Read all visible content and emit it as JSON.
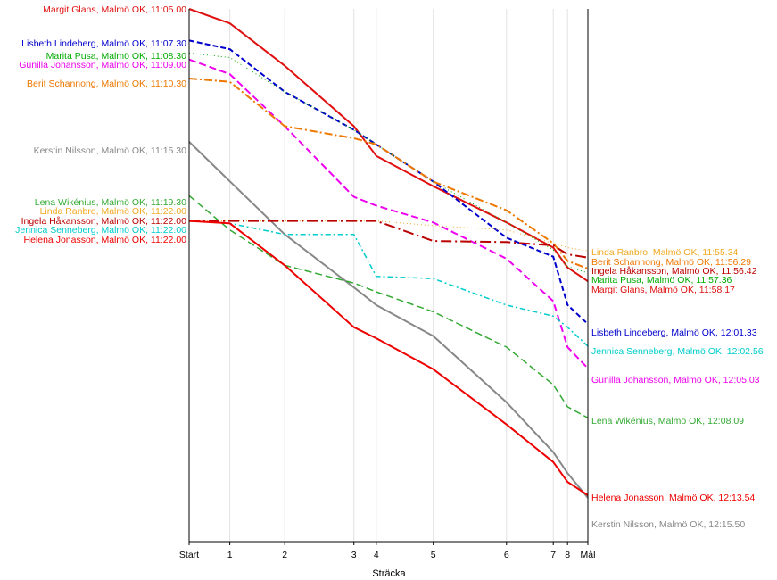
{
  "chart_data": {
    "type": "line",
    "xlabel": "Sträcka",
    "ylabel": "",
    "x_ticks": [
      "Start",
      "1",
      "2",
      "3",
      "4",
      "5",
      "6",
      "7",
      "8",
      "Mål"
    ],
    "x_positions": [
      0,
      1,
      2.35,
      4.05,
      4.6,
      6.0,
      7.8,
      8.95,
      9.3,
      9.8
    ],
    "ylim_seconds": [
      0,
      2410
    ],
    "grid": true,
    "series": [
      {
        "name": "Margit Glans, Malmö OK",
        "start_label": "Margit Glans, Malmö OK, 11:05.00",
        "end_label": "Margit Glans, Malmö OK, 11:58.17",
        "color": "#e01010",
        "dash": "",
        "width": 2,
        "y": [
          0,
          65,
          257,
          531,
          665,
          802,
          966,
          1080,
          1170,
          1232
        ]
      },
      {
        "name": "Lisbeth Lindeberg, Malmö OK",
        "start_label": "Lisbeth Lindeberg, Malmö OK, 11:07.30",
        "end_label": "Lisbeth Lindeberg, Malmö OK, 12:01.33",
        "color": "#0000cc",
        "dash": "6,3",
        "width": 2,
        "y": [
          143,
          182,
          375,
          547,
          613,
          781,
          1035,
          1121,
          1339,
          1426
        ]
      },
      {
        "name": "Marita Pusa, Malmö OK",
        "start_label": "Marita Pusa, Malmö OK, 11:08.30",
        "end_label": "Marita Pusa, Malmö OK, 11:57.36",
        "color": "#00aa00",
        "dash": "1,3",
        "width": 1,
        "y": [
          200,
          220,
          375,
          547,
          613,
          781,
          966,
          1090,
          1165,
          1195
        ]
      },
      {
        "name": "Gunilla Johansson, Malmö OK",
        "start_label": "Gunilla Johansson, Malmö OK, 11:09.00",
        "end_label": "Gunilla Johansson, Malmö OK, 12:05.03",
        "color": "#ee00ee",
        "dash": "8,4",
        "width": 2,
        "y": [
          229,
          295,
          531,
          850,
          890,
          966,
          1130,
          1322,
          1530,
          1626
        ]
      },
      {
        "name": "Berit Schannong, Malmö OK",
        "start_label": "Berit Schannong, Malmö OK, 11:10.30",
        "end_label": "Berit Schannong, Malmö OK, 11:56.29",
        "color": "#ee7700",
        "dash": "9,3,2,3",
        "width": 2,
        "y": [
          315,
          330,
          531,
          585,
          613,
          781,
          911,
          1060,
          1140,
          1175
        ]
      },
      {
        "name": "Kerstin Nilsson, Malmö OK",
        "start_label": "Kerstin Nilsson, Malmö OK, 11:15.30",
        "end_label": "Kerstin Nilsson, Malmö OK, 12:15.50",
        "color": "#888888",
        "dash": "",
        "width": 2,
        "y": [
          601,
          780,
          1020,
          1260,
          1340,
          1480,
          1780,
          2005,
          2100,
          2212
        ]
      },
      {
        "name": "Lena Wikénius, Malmö OK",
        "start_label": "Lena Wikénius, Malmö OK, 11:19.30",
        "end_label": "Lena Wikénius, Malmö OK, 12:08.09",
        "color": "#33aa33",
        "dash": "8,4",
        "width": 1.5,
        "y": [
          845,
          1000,
          1160,
          1240,
          1280,
          1370,
          1530,
          1700,
          1800,
          1850
        ]
      },
      {
        "name": "Linda Ranbro, Malmö OK",
        "start_label": "Linda Ranbro, Malmö OK, 11:22.00",
        "end_label": "Linda Ranbro, Malmö OK, 11:55.34",
        "color": "#eeaa22",
        "dash": "1,3",
        "width": 1,
        "y": [
          959,
          959,
          959,
          959,
          959,
          980,
          1000,
          1060,
          1080,
          1095
        ]
      },
      {
        "name": "Ingela Håkansson, Malmö OK",
        "start_label": "Ingela Håkansson, Malmö OK, 11:22.00",
        "end_label": "Ingela Håkansson, Malmö OK, 11:56.42",
        "color": "#bb0000",
        "dash": "12,4,2,4",
        "width": 2,
        "y": [
          959,
          959,
          959,
          959,
          959,
          1050,
          1055,
          1070,
          1110,
          1125
        ]
      },
      {
        "name": "Jennica Senneberg, Malmö OK",
        "start_label": "Jennica Senneberg, Malmö OK, 11:22.00",
        "end_label": "Jennica Senneberg, Malmö OK, 12:02.56",
        "color": "#00cccc",
        "dash": "6,3,2,3",
        "width": 1.5,
        "y": [
          959,
          970,
          1020,
          1020,
          1210,
          1220,
          1340,
          1390,
          1440,
          1526
        ]
      },
      {
        "name": "Helena Jonasson, Malmö OK",
        "start_label": "Helena Jonasson, Malmö OK, 11:22.00",
        "end_label": "Helena Jonasson, Malmö OK, 12:13.54",
        "color": "#ee0000",
        "dash": "",
        "width": 2,
        "y": [
          959,
          970,
          1160,
          1440,
          1490,
          1630,
          1880,
          2050,
          2140,
          2200
        ]
      }
    ]
  }
}
